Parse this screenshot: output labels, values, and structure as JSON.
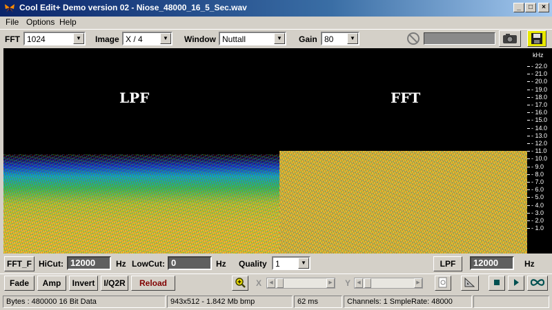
{
  "window": {
    "title": "Cool Edit+  Demo version 02 - Niose_48000_16_5_Sec.wav",
    "minimize": "_",
    "maximize": "□",
    "close": "×"
  },
  "menu": {
    "file": "File",
    "options": "Options",
    "help": "Help"
  },
  "toolbar": {
    "fft_label": "FFT",
    "fft_value": "1024",
    "image_label": "Image",
    "image_value": "X / 4",
    "window_label": "Window",
    "window_value": "Nuttall",
    "gain_label": "Gain",
    "gain_value": "80"
  },
  "spectrogram": {
    "left_label": "LPF",
    "right_label": "FFT",
    "scale_unit": "kHz",
    "ticks": [
      "22.0",
      "21.0",
      "20.0",
      "19.0",
      "18.0",
      "17.0",
      "16.0",
      "15.0",
      "14.0",
      "13.0",
      "12.0",
      "11.0",
      "10.0",
      "9.0",
      "8.0",
      "7.0",
      "6.0",
      "5.0",
      "4.0",
      "3.0",
      "2.0",
      "1.0"
    ]
  },
  "controls": {
    "fft_f": "FFT_F",
    "hicut_label": "HiCut:",
    "hicut_value": "12000",
    "hicut_unit": "Hz",
    "lowcut_label": "LowCut:",
    "lowcut_value": "0",
    "lowcut_unit": "Hz",
    "quality_label": "Quality",
    "quality_value": "1",
    "lpf": "LPF",
    "lpf_value": "12000",
    "lpf_unit": "Hz"
  },
  "actions": {
    "fade": "Fade",
    "amp": "Amp",
    "invert": "Invert",
    "iq2r": "I/Q2R",
    "reload": "Reload",
    "x_label": "X",
    "y_label": "Y"
  },
  "status": {
    "bytes": "Bytes : 480000 16 Bit Data",
    "image": "943x512 - 1.842 Mb bmp",
    "time": "62 ms",
    "channels": "Channels: 1  SmpleRate: 48000"
  },
  "colors": {
    "titlebar": "#0a246a",
    "reload_text": "#800000",
    "face": "#d4d0c8"
  }
}
